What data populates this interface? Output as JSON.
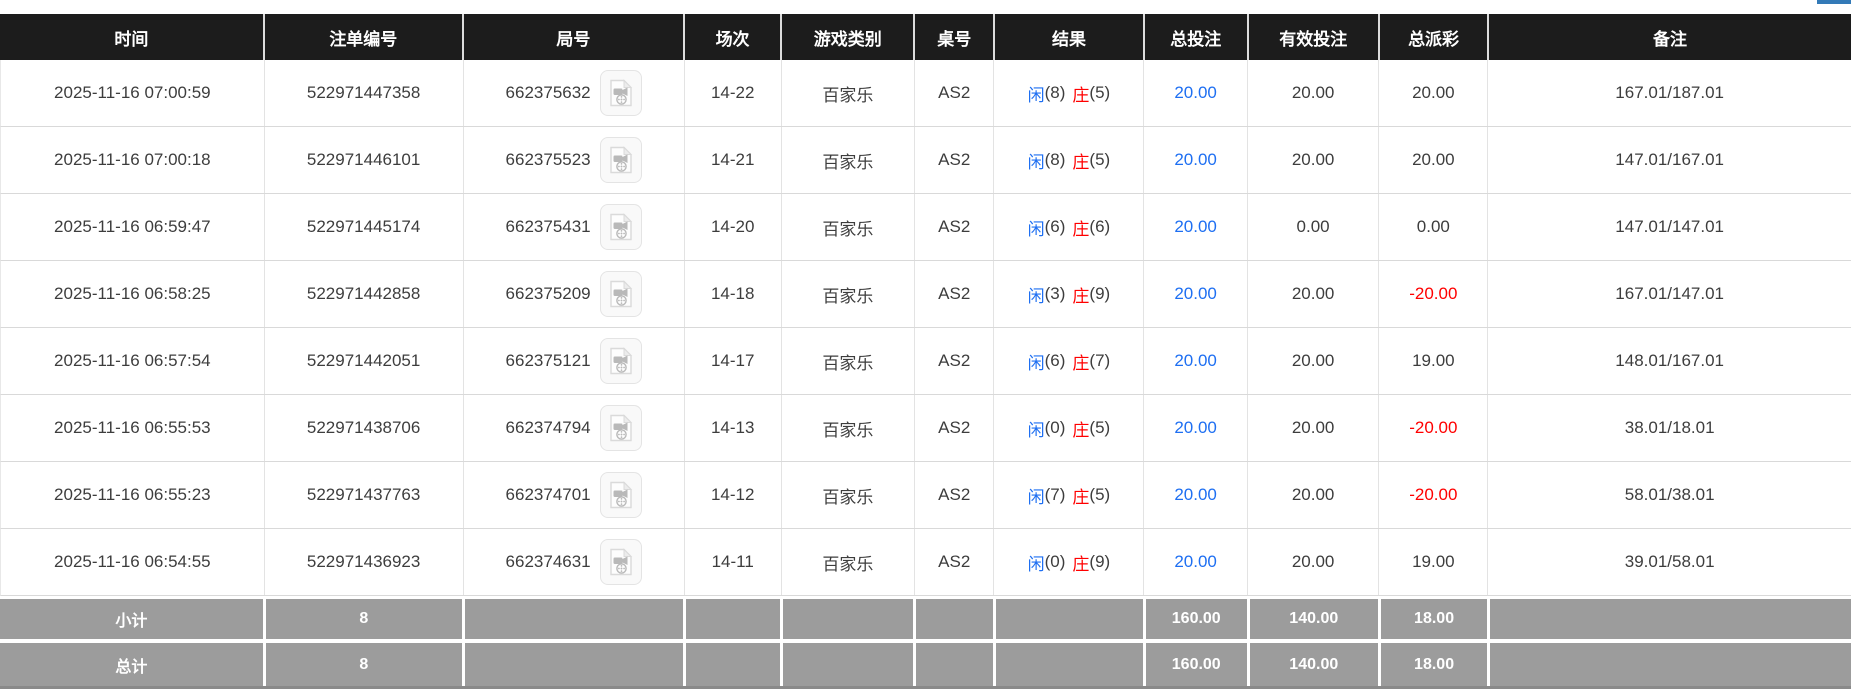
{
  "page": {
    "top_right_fragment_color": "#337ab7"
  },
  "colors": {
    "header_bg": "#1c1c1c",
    "header_text": "#ffffff",
    "body_text": "#3d3d3d",
    "link_blue": "#1e6ff2",
    "player_blue": "#1e6ff2",
    "banker_red": "#ff0000",
    "negative_red": "#ff0000",
    "summary_bg": "#9c9c9c",
    "summary_text": "#ffffff"
  },
  "icons": {
    "round_video": "video-file-icon"
  },
  "table": {
    "columns": [
      {
        "key": "time",
        "label": "时间"
      },
      {
        "key": "bet_id",
        "label": "注单编号"
      },
      {
        "key": "round",
        "label": "局号"
      },
      {
        "key": "session",
        "label": "场次"
      },
      {
        "key": "game",
        "label": "游戏类别"
      },
      {
        "key": "table_no",
        "label": "桌号"
      },
      {
        "key": "result",
        "label": "结果"
      },
      {
        "key": "total_bet",
        "label": "总投注"
      },
      {
        "key": "valid_bet",
        "label": "有效投注"
      },
      {
        "key": "payout",
        "label": "总派彩"
      },
      {
        "key": "remark",
        "label": "备注"
      }
    ],
    "result_labels": {
      "player": "闲",
      "banker": "庄"
    },
    "rows": [
      {
        "time": "2025-11-16 07:00:59",
        "bet_id": "522971447358",
        "round": "662375632",
        "session": "14-22",
        "game": "百家乐",
        "table_no": "AS2",
        "player": "8",
        "banker": "5",
        "total_bet": "20.00",
        "valid_bet": "20.00",
        "payout": "20.00",
        "remark": "167.01/187.01"
      },
      {
        "time": "2025-11-16 07:00:18",
        "bet_id": "522971446101",
        "round": "662375523",
        "session": "14-21",
        "game": "百家乐",
        "table_no": "AS2",
        "player": "8",
        "banker": "5",
        "total_bet": "20.00",
        "valid_bet": "20.00",
        "payout": "20.00",
        "remark": "147.01/167.01"
      },
      {
        "time": "2025-11-16 06:59:47",
        "bet_id": "522971445174",
        "round": "662375431",
        "session": "14-20",
        "game": "百家乐",
        "table_no": "AS2",
        "player": "6",
        "banker": "6",
        "total_bet": "20.00",
        "valid_bet": "0.00",
        "payout": "0.00",
        "remark": "147.01/147.01"
      },
      {
        "time": "2025-11-16 06:58:25",
        "bet_id": "522971442858",
        "round": "662375209",
        "session": "14-18",
        "game": "百家乐",
        "table_no": "AS2",
        "player": "3",
        "banker": "9",
        "total_bet": "20.00",
        "valid_bet": "20.00",
        "payout": "-20.00",
        "remark": "167.01/147.01"
      },
      {
        "time": "2025-11-16 06:57:54",
        "bet_id": "522971442051",
        "round": "662375121",
        "session": "14-17",
        "game": "百家乐",
        "table_no": "AS2",
        "player": "6",
        "banker": "7",
        "total_bet": "20.00",
        "valid_bet": "20.00",
        "payout": "19.00",
        "remark": "148.01/167.01"
      },
      {
        "time": "2025-11-16 06:55:53",
        "bet_id": "522971438706",
        "round": "662374794",
        "session": "14-13",
        "game": "百家乐",
        "table_no": "AS2",
        "player": "0",
        "banker": "5",
        "total_bet": "20.00",
        "valid_bet": "20.00",
        "payout": "-20.00",
        "remark": "38.01/18.01"
      },
      {
        "time": "2025-11-16 06:55:23",
        "bet_id": "522971437763",
        "round": "662374701",
        "session": "14-12",
        "game": "百家乐",
        "table_no": "AS2",
        "player": "7",
        "banker": "5",
        "total_bet": "20.00",
        "valid_bet": "20.00",
        "payout": "-20.00",
        "remark": "58.01/38.01"
      },
      {
        "time": "2025-11-16 06:54:55",
        "bet_id": "522971436923",
        "round": "662374631",
        "session": "14-11",
        "game": "百家乐",
        "table_no": "AS2",
        "player": "0",
        "banker": "9",
        "total_bet": "20.00",
        "valid_bet": "20.00",
        "payout": "19.00",
        "remark": "39.01/58.01"
      }
    ],
    "summary_rows": [
      {
        "label": "小计",
        "count": "8",
        "total_bet": "160.00",
        "valid_bet": "140.00",
        "payout": "18.00",
        "remark": ""
      },
      {
        "label": "总计",
        "count": "8",
        "total_bet": "160.00",
        "valid_bet": "140.00",
        "payout": "18.00",
        "remark": ""
      }
    ]
  }
}
